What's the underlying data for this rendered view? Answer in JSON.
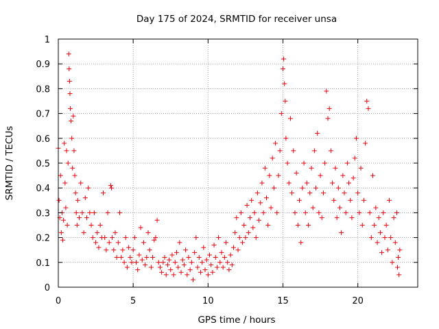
{
  "chart_data": {
    "type": "scatter",
    "title": "Day 175 of 2024, SRMTID for receiver unsa",
    "xlabel": "GPS time / hours",
    "ylabel": "SRMTID / TECUs",
    "xlim": [
      0,
      24
    ],
    "ylim": [
      0,
      1
    ],
    "xticks": [
      0,
      5,
      10,
      15,
      20
    ],
    "yticks": [
      0,
      0.1,
      0.2,
      0.3,
      0.4,
      0.5,
      0.6,
      0.7,
      0.8,
      0.9,
      1
    ],
    "x_tick_labels": [
      "0",
      "5",
      "10",
      "15",
      "20"
    ],
    "y_tick_labels": [
      "0",
      "0.1",
      "0.2",
      "0.3",
      "0.4",
      "0.5",
      "0.6",
      "0.7",
      "0.8",
      "0.9",
      "1"
    ],
    "grid": true,
    "marker": "+",
    "marker_color": "#e8000b",
    "series": [
      {
        "name": "SRMTID",
        "points": [
          [
            0.0,
            0.56
          ],
          [
            0.05,
            0.35
          ],
          [
            0.1,
            0.28
          ],
          [
            0.15,
            0.45
          ],
          [
            0.2,
            0.22
          ],
          [
            0.25,
            0.3
          ],
          [
            0.3,
            0.19
          ],
          [
            0.35,
            0.27
          ],
          [
            0.4,
            0.58
          ],
          [
            0.45,
            0.42
          ],
          [
            0.5,
            0.32
          ],
          [
            0.55,
            0.55
          ],
          [
            0.6,
            0.25
          ],
          [
            0.65,
            0.5
          ],
          [
            0.7,
            0.94
          ],
          [
            0.72,
            0.88
          ],
          [
            0.75,
            0.83
          ],
          [
            0.78,
            0.78
          ],
          [
            0.8,
            0.72
          ],
          [
            0.85,
            0.67
          ],
          [
            0.9,
            0.6
          ],
          [
            0.95,
            0.48
          ],
          [
            1.0,
            0.69
          ],
          [
            1.05,
            0.55
          ],
          [
            1.1,
            0.45
          ],
          [
            1.15,
            0.38
          ],
          [
            1.2,
            0.3
          ],
          [
            1.25,
            0.25
          ],
          [
            1.3,
            0.35
          ],
          [
            1.4,
            0.28
          ],
          [
            1.5,
            0.42
          ],
          [
            1.6,
            0.3
          ],
          [
            1.7,
            0.22
          ],
          [
            1.8,
            0.36
          ],
          [
            1.9,
            0.28
          ],
          [
            2.0,
            0.4
          ],
          [
            2.1,
            0.3
          ],
          [
            2.2,
            0.25
          ],
          [
            2.3,
            0.2
          ],
          [
            2.4,
            0.3
          ],
          [
            2.5,
            0.18
          ],
          [
            2.6,
            0.22
          ],
          [
            2.7,
            0.16
          ],
          [
            2.8,
            0.25
          ],
          [
            2.9,
            0.2
          ],
          [
            3.0,
            0.38
          ],
          [
            3.1,
            0.2
          ],
          [
            3.2,
            0.15
          ],
          [
            3.3,
            0.3
          ],
          [
            3.4,
            0.18
          ],
          [
            3.5,
            0.41
          ],
          [
            3.55,
            0.4
          ],
          [
            3.6,
            0.2
          ],
          [
            3.7,
            0.15
          ],
          [
            3.8,
            0.22
          ],
          [
            3.9,
            0.12
          ],
          [
            4.0,
            0.18
          ],
          [
            4.1,
            0.3
          ],
          [
            4.2,
            0.12
          ],
          [
            4.3,
            0.15
          ],
          [
            4.4,
            0.1
          ],
          [
            4.5,
            0.2
          ],
          [
            4.6,
            0.08
          ],
          [
            4.7,
            0.16
          ],
          [
            4.8,
            0.12
          ],
          [
            4.9,
            0.1
          ],
          [
            5.0,
            0.15
          ],
          [
            5.1,
            0.2
          ],
          [
            5.2,
            0.1
          ],
          [
            5.3,
            0.07
          ],
          [
            5.4,
            0.13
          ],
          [
            5.5,
            0.24
          ],
          [
            5.6,
            0.11
          ],
          [
            5.7,
            0.18
          ],
          [
            5.8,
            0.09
          ],
          [
            5.9,
            0.12
          ],
          [
            6.0,
            0.22
          ],
          [
            6.1,
            0.15
          ],
          [
            6.2,
            0.08
          ],
          [
            6.3,
            0.12
          ],
          [
            6.4,
            0.19
          ],
          [
            6.5,
            0.2
          ],
          [
            6.6,
            0.27
          ],
          [
            6.7,
            0.1
          ],
          [
            6.8,
            0.08
          ],
          [
            6.9,
            0.06
          ],
          [
            7.0,
            0.1
          ],
          [
            7.1,
            0.12
          ],
          [
            7.2,
            0.05
          ],
          [
            7.3,
            0.09
          ],
          [
            7.4,
            0.11
          ],
          [
            7.5,
            0.07
          ],
          [
            7.6,
            0.13
          ],
          [
            7.7,
            0.05
          ],
          [
            7.8,
            0.1
          ],
          [
            7.9,
            0.14
          ],
          [
            8.0,
            0.08
          ],
          [
            8.1,
            0.18
          ],
          [
            8.2,
            0.06
          ],
          [
            8.3,
            0.11
          ],
          [
            8.4,
            0.09
          ],
          [
            8.5,
            0.15
          ],
          [
            8.6,
            0.05
          ],
          [
            8.7,
            0.12
          ],
          [
            8.8,
            0.07
          ],
          [
            8.9,
            0.1
          ],
          [
            9.0,
            0.03
          ],
          [
            9.1,
            0.14
          ],
          [
            9.2,
            0.2
          ],
          [
            9.3,
            0.08
          ],
          [
            9.4,
            0.12
          ],
          [
            9.5,
            0.06
          ],
          [
            9.6,
            0.1
          ],
          [
            9.7,
            0.16
          ],
          [
            9.8,
            0.07
          ],
          [
            9.9,
            0.11
          ],
          [
            10.0,
            0.05
          ],
          [
            10.1,
            0.13
          ],
          [
            10.2,
            0.09
          ],
          [
            10.3,
            0.06
          ],
          [
            10.4,
            0.17
          ],
          [
            10.5,
            0.12
          ],
          [
            10.6,
            0.08
          ],
          [
            10.7,
            0.2
          ],
          [
            10.8,
            0.1
          ],
          [
            10.9,
            0.14
          ],
          [
            11.0,
            0.08
          ],
          [
            11.1,
            0.12
          ],
          [
            11.2,
            0.18
          ],
          [
            11.3,
            0.1
          ],
          [
            11.4,
            0.07
          ],
          [
            11.5,
            0.13
          ],
          [
            11.6,
            0.09
          ],
          [
            11.7,
            0.16
          ],
          [
            11.8,
            0.22
          ],
          [
            11.9,
            0.28
          ],
          [
            12.0,
            0.15
          ],
          [
            12.1,
            0.2
          ],
          [
            12.2,
            0.3
          ],
          [
            12.3,
            0.18
          ],
          [
            12.4,
            0.25
          ],
          [
            12.5,
            0.2
          ],
          [
            12.6,
            0.33
          ],
          [
            12.7,
            0.22
          ],
          [
            12.8,
            0.28
          ],
          [
            12.9,
            0.35
          ],
          [
            13.0,
            0.24
          ],
          [
            13.1,
            0.3
          ],
          [
            13.2,
            0.2
          ],
          [
            13.3,
            0.38
          ],
          [
            13.4,
            0.27
          ],
          [
            13.5,
            0.34
          ],
          [
            13.6,
            0.42
          ],
          [
            13.7,
            0.3
          ],
          [
            13.8,
            0.48
          ],
          [
            13.9,
            0.36
          ],
          [
            14.0,
            0.25
          ],
          [
            14.1,
            0.45
          ],
          [
            14.2,
            0.32
          ],
          [
            14.3,
            0.52
          ],
          [
            14.4,
            0.4
          ],
          [
            14.5,
            0.58
          ],
          [
            14.6,
            0.3
          ],
          [
            14.7,
            0.45
          ],
          [
            14.8,
            0.55
          ],
          [
            14.9,
            0.7
          ],
          [
            15.0,
            0.88
          ],
          [
            15.05,
            0.92
          ],
          [
            15.1,
            0.82
          ],
          [
            15.15,
            0.75
          ],
          [
            15.2,
            0.6
          ],
          [
            15.3,
            0.5
          ],
          [
            15.4,
            0.42
          ],
          [
            15.5,
            0.68
          ],
          [
            15.6,
            0.38
          ],
          [
            15.7,
            0.55
          ],
          [
            15.8,
            0.3
          ],
          [
            15.9,
            0.46
          ],
          [
            16.0,
            0.25
          ],
          [
            16.1,
            0.35
          ],
          [
            16.2,
            0.18
          ],
          [
            16.3,
            0.4
          ],
          [
            16.4,
            0.5
          ],
          [
            16.5,
            0.3
          ],
          [
            16.6,
            0.42
          ],
          [
            16.7,
            0.25
          ],
          [
            16.8,
            0.38
          ],
          [
            16.9,
            0.48
          ],
          [
            17.0,
            0.32
          ],
          [
            17.1,
            0.55
          ],
          [
            17.2,
            0.4
          ],
          [
            17.3,
            0.62
          ],
          [
            17.4,
            0.3
          ],
          [
            17.5,
            0.45
          ],
          [
            17.6,
            0.28
          ],
          [
            17.7,
            0.38
          ],
          [
            17.8,
            0.5
          ],
          [
            17.9,
            0.79
          ],
          [
            18.0,
            0.68
          ],
          [
            18.1,
            0.72
          ],
          [
            18.2,
            0.55
          ],
          [
            18.3,
            0.42
          ],
          [
            18.4,
            0.35
          ],
          [
            18.5,
            0.48
          ],
          [
            18.6,
            0.28
          ],
          [
            18.7,
            0.4
          ],
          [
            18.8,
            0.32
          ],
          [
            18.9,
            0.22
          ],
          [
            19.0,
            0.45
          ],
          [
            19.1,
            0.38
          ],
          [
            19.2,
            0.3
          ],
          [
            19.3,
            0.5
          ],
          [
            19.4,
            0.42
          ],
          [
            19.5,
            0.35
          ],
          [
            19.6,
            0.28
          ],
          [
            19.7,
            0.44
          ],
          [
            19.8,
            0.52
          ],
          [
            19.9,
            0.6
          ],
          [
            20.0,
            0.38
          ],
          [
            20.1,
            0.3
          ],
          [
            20.2,
            0.48
          ],
          [
            20.3,
            0.25
          ],
          [
            20.4,
            0.35
          ],
          [
            20.5,
            0.58
          ],
          [
            20.6,
            0.75
          ],
          [
            20.7,
            0.72
          ],
          [
            20.8,
            0.3
          ],
          [
            20.9,
            0.2
          ],
          [
            21.0,
            0.45
          ],
          [
            21.1,
            0.25
          ],
          [
            21.2,
            0.32
          ],
          [
            21.3,
            0.18
          ],
          [
            21.4,
            0.28
          ],
          [
            21.5,
            0.22
          ],
          [
            21.6,
            0.14
          ],
          [
            21.7,
            0.3
          ],
          [
            21.8,
            0.2
          ],
          [
            21.9,
            0.25
          ],
          [
            22.0,
            0.15
          ],
          [
            22.1,
            0.35
          ],
          [
            22.2,
            0.2
          ],
          [
            22.3,
            0.1
          ],
          [
            22.4,
            0.28
          ],
          [
            22.5,
            0.18
          ],
          [
            22.6,
            0.3
          ],
          [
            22.65,
            0.08
          ],
          [
            22.7,
            0.12
          ],
          [
            22.75,
            0.05
          ],
          [
            22.8,
            0.15
          ]
        ]
      }
    ]
  }
}
